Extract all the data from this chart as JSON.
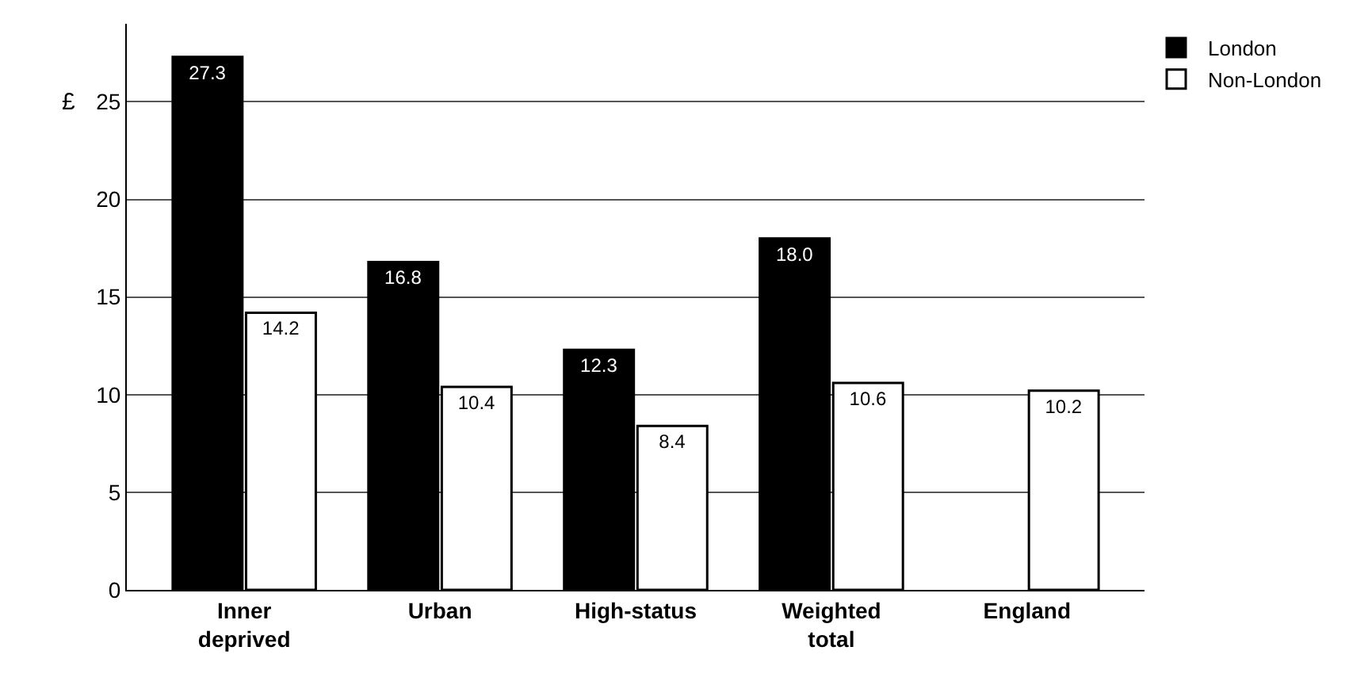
{
  "chart_data": {
    "type": "bar",
    "ylabel": "£",
    "categories": [
      "Inner deprived",
      "Urban",
      "High-status",
      "Weighted total",
      "England"
    ],
    "series": [
      {
        "name": "London",
        "color": "#000000",
        "values": [
          27.3,
          16.8,
          12.3,
          18.0,
          null
        ],
        "value_labels": [
          "27.3",
          "16.8",
          "12.3",
          "18.0",
          null
        ]
      },
      {
        "name": "Non-London",
        "color": "#ffffff",
        "values": [
          14.2,
          10.4,
          8.4,
          10.6,
          10.2
        ],
        "value_labels": [
          "14.2",
          "10.4",
          "8.4",
          "10.6",
          "10.2"
        ]
      }
    ],
    "ylim": [
      0,
      29
    ],
    "yticks": [
      0,
      5,
      10,
      15,
      20,
      25
    ],
    "grid": "y",
    "legend": "top right"
  }
}
